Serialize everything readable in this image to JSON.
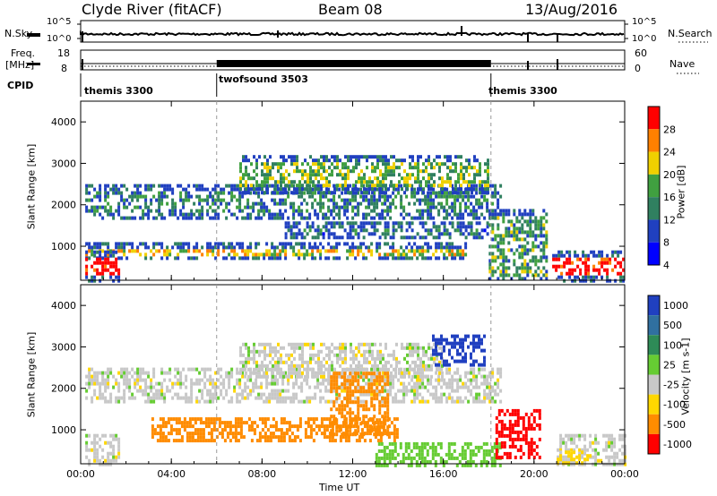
{
  "header": {
    "station": "Clyde River (fitACF)",
    "beam": "Beam 08",
    "date": "13/Aug/2016"
  },
  "top_panels": {
    "nsky_label": "N.Sky",
    "nsky_ticks": [
      "10^5",
      "10^0"
    ],
    "nsearch_label": "N.Search",
    "nsearch_ticks": [
      "10^5",
      "10^0"
    ],
    "freq_label_1": "Freq.",
    "freq_label_2": "[MHz]",
    "freq_ticks": [
      "18",
      "8"
    ],
    "nave_label": "Nave",
    "nave_ticks": [
      "60",
      "0"
    ],
    "cpid_label": "CPID",
    "cpid_segments": [
      {
        "name": "themis 3300",
        "start_h": 0,
        "end_h": 6.0
      },
      {
        "name": "twofsound 3503",
        "start_h": 6.0,
        "end_h": 18.1
      },
      {
        "name": "themis 3300",
        "start_h": 18.1,
        "end_h": 24
      }
    ]
  },
  "chart_data": [
    {
      "type": "heatmap",
      "panel": "power",
      "xlabel": "Time UT",
      "ylabel": "Slant Range [km]",
      "xlim": [
        0,
        24
      ],
      "ylim": [
        180,
        4500
      ],
      "x_ticks": [
        "00:00",
        "04:00",
        "08:00",
        "12:00",
        "16:00",
        "20:00",
        "00:00"
      ],
      "y_ticks": [
        1000,
        2000,
        3000,
        4000
      ],
      "colorbar_label": "Power [dB]",
      "colorbar_ticks": [
        4,
        8,
        12,
        16,
        20,
        24,
        28
      ],
      "colorbar_colors": [
        "#0000ff",
        "#2040c0",
        "#308060",
        "#40a040",
        "#f0d000",
        "#ff8000",
        "#ff0000"
      ],
      "bands": [
        {
          "start_h": 0.2,
          "end_h": 18.5,
          "range_lo": 1700,
          "range_hi": 2500,
          "value": 10
        },
        {
          "start_h": 7.0,
          "end_h": 18.0,
          "range_lo": 2300,
          "range_hi": 3200,
          "value": 14
        },
        {
          "start_h": 9.0,
          "end_h": 18.0,
          "range_lo": 1200,
          "range_hi": 1600,
          "value": 8
        },
        {
          "start_h": 0.2,
          "end_h": 17.0,
          "range_lo": 700,
          "range_hi": 1100,
          "value": 18
        },
        {
          "start_h": 0.2,
          "end_h": 1.7,
          "range_lo": 180,
          "range_hi": 900,
          "value": 28
        },
        {
          "start_h": 20.8,
          "end_h": 24.0,
          "range_lo": 180,
          "range_hi": 900,
          "value": 26
        },
        {
          "start_h": 18.0,
          "end_h": 20.5,
          "range_lo": 200,
          "range_hi": 1900,
          "value": 12
        }
      ]
    },
    {
      "type": "heatmap",
      "panel": "velocity",
      "xlabel": "Time UT",
      "ylabel": "Slant Range [km]",
      "xlim": [
        0,
        24
      ],
      "ylim": [
        180,
        4500
      ],
      "x_ticks": [
        "00:00",
        "04:00",
        "08:00",
        "12:00",
        "16:00",
        "20:00",
        "00:00"
      ],
      "y_ticks": [
        1000,
        2000,
        3000,
        4000
      ],
      "colorbar_label": "Velocity [m s-1]",
      "colorbar_ticks": [
        "1000",
        "500",
        "100",
        "25",
        "-25",
        "-100",
        "-500",
        "-1000"
      ],
      "colorbar_colors": [
        "#2040c0",
        "#3070a0",
        "#2e8b57",
        "#66cc33",
        "#c8c8c8",
        "#ffd700",
        "#ff8c00",
        "#ff0000"
      ],
      "bands": [
        {
          "start_h": 0.2,
          "end_h": 18.5,
          "range_lo": 1700,
          "range_hi": 2500,
          "value": 0
        },
        {
          "start_h": 7.0,
          "end_h": 16.0,
          "range_lo": 2300,
          "range_hi": 3100,
          "value": 0
        },
        {
          "start_h": 15.5,
          "end_h": 17.8,
          "range_lo": 2600,
          "range_hi": 3300,
          "value": 700
        },
        {
          "start_h": 3.0,
          "end_h": 14.0,
          "range_lo": 700,
          "range_hi": 1300,
          "value": -300
        },
        {
          "start_h": 11.0,
          "end_h": 13.5,
          "range_lo": 900,
          "range_hi": 2400,
          "value": -300
        },
        {
          "start_h": 13.0,
          "end_h": 18.5,
          "range_lo": 180,
          "range_hi": 700,
          "value": 70
        },
        {
          "start_h": 0.2,
          "end_h": 1.7,
          "range_lo": 180,
          "range_hi": 900,
          "value": 0
        },
        {
          "start_h": 18.3,
          "end_h": 20.3,
          "range_lo": 300,
          "range_hi": 1500,
          "value": -600
        },
        {
          "start_h": 21.0,
          "end_h": 24.0,
          "range_lo": 180,
          "range_hi": 900,
          "value": 0
        },
        {
          "start_h": 21.0,
          "end_h": 22.5,
          "range_lo": 180,
          "range_hi": 500,
          "value": -50
        }
      ]
    }
  ]
}
